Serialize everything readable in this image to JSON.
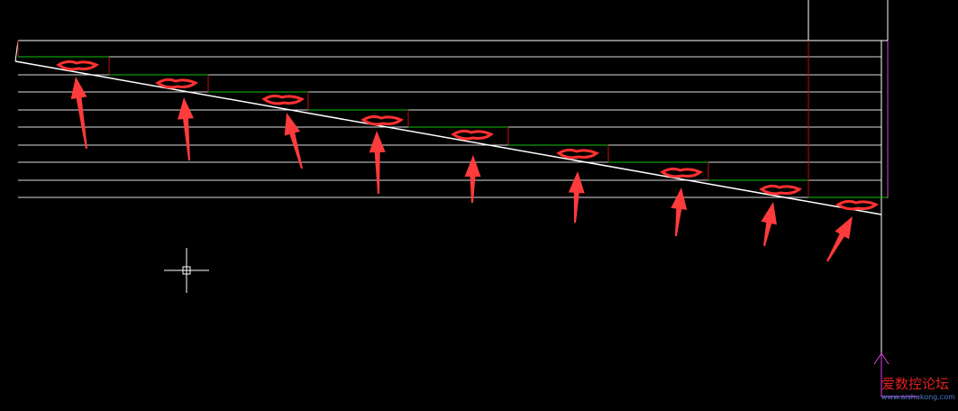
{
  "watermark": {
    "title": "爱数控论坛",
    "url": "www.aishukong.com"
  }
}
